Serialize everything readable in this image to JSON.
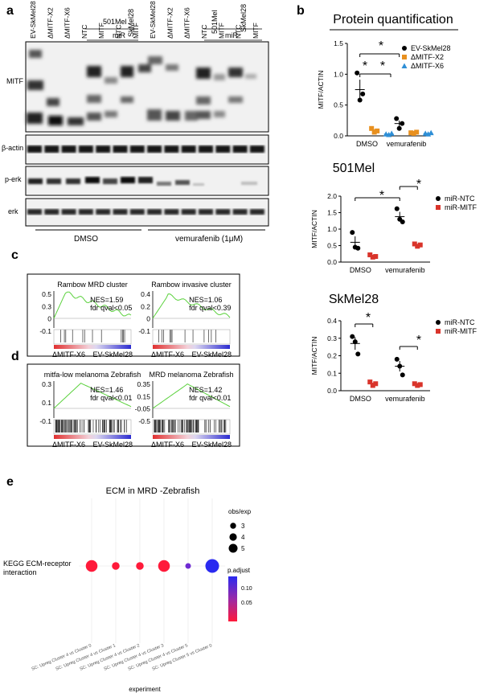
{
  "panel_letters": {
    "a": "a",
    "b": "b",
    "c": "c",
    "d": "d",
    "e": "e"
  },
  "panel_a": {
    "lane_labels_top": [
      "EV-SkMel28",
      "ΔMITF-X2",
      "ΔMITF-X6",
      "NTC",
      "MITF",
      "NTC",
      "MITF",
      "EV-SkMel28",
      "ΔMITF-X2",
      "ΔMITF-X6",
      "NTC",
      "MITF",
      "NTC",
      "MITF"
    ],
    "group_labels": [
      "501Mel",
      "SkMel28",
      "501Mel",
      "SkMel28"
    ],
    "mir_labels": [
      "miR",
      "miR"
    ],
    "blots": [
      "MITF",
      "β-actin",
      "p-erk",
      "erk"
    ],
    "treatments": [
      "DMSO",
      "vemurafenib (1μM)"
    ]
  },
  "colors": {
    "black": "#000000",
    "orange": "#e8901f",
    "blue": "#2f8fd6",
    "red": "#d9342b",
    "green": "#5ad13c"
  },
  "chart_data": [
    {
      "type": "scatter",
      "title": "Protein quantification",
      "ylabel": "MITF/ACTIN",
      "ylim": [
        0,
        1.5
      ],
      "yticks": [
        "0.0",
        "0.5",
        "1.0",
        "1.5"
      ],
      "categories": [
        "DMSO",
        "vemurafenib"
      ],
      "legend": "top-right",
      "series": [
        {
          "name": "EV-SkMel28",
          "color": "#000000",
          "marker": "circle",
          "points": [
            [
              1.02,
              0.58,
              0.68
            ],
            [
              0.28,
              0.12,
              0.2
            ]
          ],
          "mean": [
            0.75,
            0.2
          ]
        },
        {
          "name": "ΔMITF-X2",
          "color": "#e8901f",
          "marker": "square",
          "points": [
            [
              0.12,
              0.06,
              0.08
            ],
            [
              0.05,
              0.04,
              0.06
            ]
          ],
          "mean": [
            0.09,
            0.05
          ]
        },
        {
          "name": "ΔMITF-X6",
          "color": "#2f8fd6",
          "marker": "triangle",
          "points": [
            [
              0.03,
              0.02,
              0.04
            ],
            [
              0.04,
              0.03,
              0.05
            ]
          ],
          "mean": [
            0.03,
            0.04
          ]
        }
      ],
      "significance": [
        "*",
        "*",
        "*"
      ]
    },
    {
      "type": "scatter",
      "title": "501Mel",
      "ylabel": "MITF/ACTIN",
      "ylim": [
        0,
        2.0
      ],
      "yticks": [
        "0.0",
        "0.5",
        "1.0",
        "1.5",
        "2.0"
      ],
      "categories": [
        "DMSO",
        "vemurafenib"
      ],
      "legend": "top-right",
      "series": [
        {
          "name": "miR-NTC",
          "color": "#000000",
          "marker": "circle",
          "points": [
            [
              0.9,
              0.45,
              0.42
            ],
            [
              1.62,
              1.3,
              1.22
            ]
          ],
          "mean": [
            0.6,
            1.38
          ]
        },
        {
          "name": "miR-MITF",
          "color": "#d9342b",
          "marker": "square",
          "points": [
            [
              0.22,
              0.15,
              0.17
            ],
            [
              0.55,
              0.48,
              0.52
            ]
          ],
          "mean": [
            0.18,
            0.52
          ]
        }
      ],
      "significance": [
        "*",
        "*"
      ]
    },
    {
      "type": "scatter",
      "title": "SkMel28",
      "ylabel": "MITF/ACTIN",
      "ylim": [
        0,
        0.4
      ],
      "yticks": [
        "0.0",
        "0.1",
        "0.2",
        "0.3",
        "0.4"
      ],
      "categories": [
        "DMSO",
        "vemurafenib"
      ],
      "legend": "top-right",
      "series": [
        {
          "name": "miR-NTC",
          "color": "#000000",
          "marker": "circle",
          "points": [
            [
              0.31,
              0.28,
              0.21
            ],
            [
              0.18,
              0.14,
              0.09
            ]
          ],
          "mean": [
            0.27,
            0.14
          ]
        },
        {
          "name": "miR-MITF",
          "color": "#d9342b",
          "marker": "square",
          "points": [
            [
              0.05,
              0.03,
              0.04
            ],
            [
              0.04,
              0.03,
              0.035
            ]
          ],
          "mean": [
            0.04,
            0.035
          ]
        }
      ],
      "significance": [
        "*",
        "*"
      ]
    },
    {
      "type": "scatter",
      "title": "ECM in MRD -Zebrafish",
      "xlabel": "experiment",
      "ylabel": "",
      "y_categories": [
        "KEGG ECM-receptor interaction"
      ],
      "categories": [
        "SC: Upreg Cluster 4 vs Cluster 0",
        "SC: Upreg Cluster 4 vs Cluster 1",
        "SC: Upreg Cluster 4 vs Cluster 2",
        "SC: Upreg Cluster 4 vs Cluster 3",
        "SC: Upreg Cluster 4 vs Cluster 5",
        "SC: Upreg Cluster 5 vs Cluster 0"
      ],
      "obs_exp": [
        5,
        3,
        3,
        5,
        2,
        6
      ],
      "p_adjust": [
        0.01,
        0.02,
        0.02,
        0.01,
        0.13,
        0.14
      ],
      "size_legend_title": "obs/exp",
      "size_legend": [
        "3",
        "4",
        "5"
      ],
      "color_legend_title": "p.adjust",
      "color_legend": [
        "0.10",
        "0.05"
      ]
    }
  ],
  "gsea": [
    {
      "title": "Rambow MRD cluster",
      "nes": "NES=1.59",
      "fdr": "fdr qval<0.05",
      "yticks": [
        "0.5",
        "0.3",
        "0",
        "-0.1"
      ],
      "left": "ΔMITF-X6",
      "right": "EV-SkMel28"
    },
    {
      "title": "Rambow invasive cluster",
      "nes": "NES=1.06",
      "fdr": "fdr qval<0.39",
      "yticks": [
        "0.4",
        "0.2",
        "0",
        "-0.1"
      ],
      "left": "ΔMITF-X6",
      "right": "EV-SkMel28"
    },
    {
      "title": "mitfa-low melanoma Zebrafish",
      "nes": "NES=1.46",
      "fdr": "fdr qval<0.01",
      "yticks": [
        "0.3",
        "0.1",
        "-0.1"
      ],
      "left": "ΔMITF-X6",
      "right": "EV-SkMel28"
    },
    {
      "title": "MRD melanoma Zebrafish",
      "nes": "NES=1.42",
      "fdr": "fdr qval<0.01",
      "yticks": [
        "0.35",
        "0.15",
        "-0.05",
        "-0.5"
      ],
      "left": "ΔMITF-X6",
      "right": "EV-SkMel28"
    }
  ]
}
